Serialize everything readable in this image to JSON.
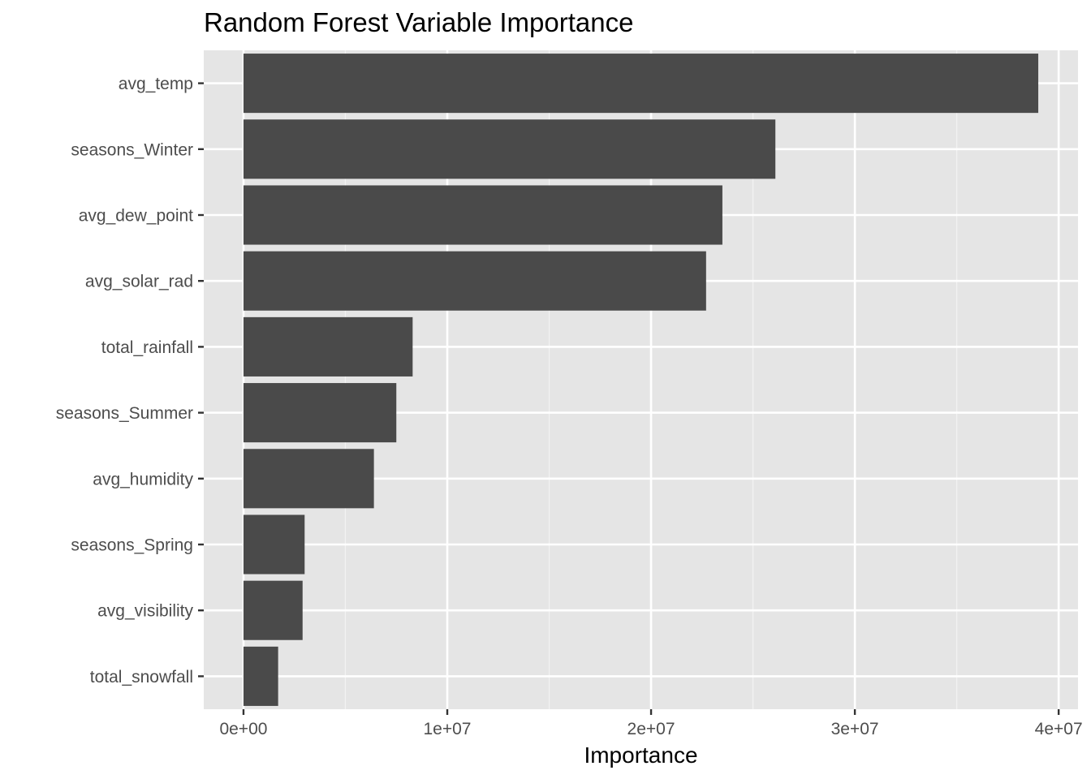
{
  "chart_data": {
    "type": "bar",
    "orientation": "horizontal",
    "title": "Random Forest Variable Importance",
    "xlabel": "Importance",
    "ylabel": "",
    "categories": [
      "avg_temp",
      "seasons_Winter",
      "avg_dew_point",
      "avg_solar_rad",
      "total_rainfall",
      "seasons_Summer",
      "avg_humidity",
      "seasons_Spring",
      "avg_visibility",
      "total_snowfall"
    ],
    "values": [
      39000000,
      26100000,
      23500000,
      22700000,
      8300000,
      7500000,
      6400000,
      3000000,
      2900000,
      1700000
    ],
    "xlim": [
      -1950000,
      40950000
    ],
    "x_ticks": [
      0,
      10000000,
      20000000,
      30000000,
      40000000
    ],
    "x_tick_labels": [
      "0e+00",
      "1e+07",
      "2e+07",
      "3e+07",
      "4e+07"
    ],
    "grid": true,
    "legend": "none",
    "colors": {
      "bar": "#4a4a4a",
      "panel_background": "#e5e5e5",
      "grid_major": "#ffffff",
      "grid_minor": "#f2f2f2",
      "tick_mark": "#333333",
      "tick_label": "#4d4d4d"
    }
  }
}
